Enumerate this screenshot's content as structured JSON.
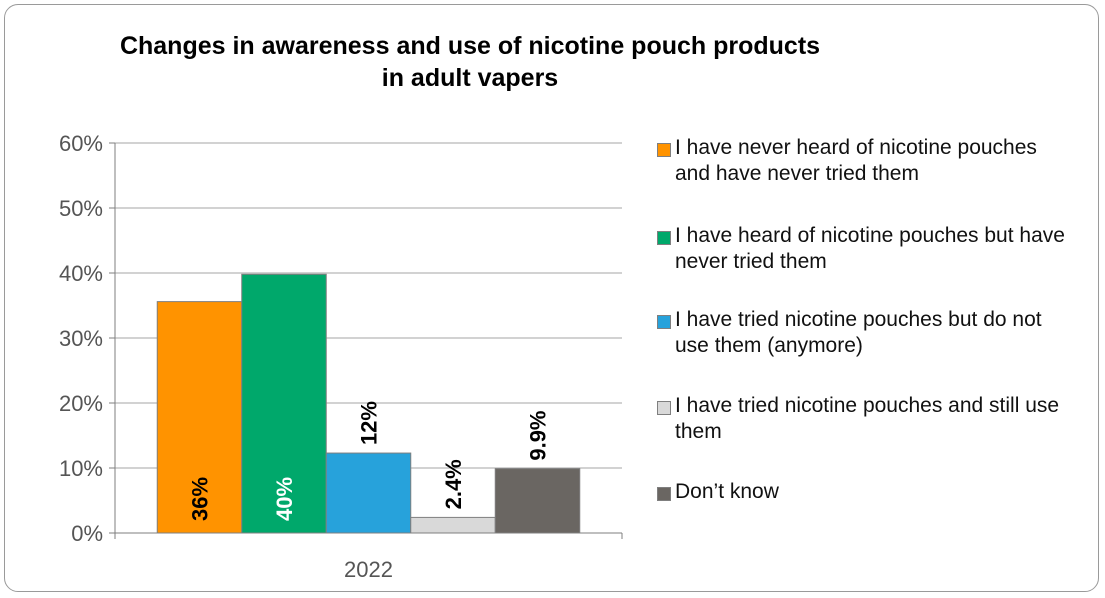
{
  "chart_data": {
    "type": "bar",
    "title": "Changes in awareness and use of nicotine pouch products in adult vapers",
    "title_lines": [
      "Changes in awareness and use of nicotine pouch products",
      "in adult vapers"
    ],
    "categories": [
      "2022"
    ],
    "yticks": [
      "0%",
      "10%",
      "20%",
      "30%",
      "40%",
      "50%",
      "60%"
    ],
    "ylim": [
      0,
      60
    ],
    "grid": true,
    "legend_position": "right",
    "series": [
      {
        "name": "I have never heard of nicotine pouches and have never tried them",
        "values": [
          35.6
        ],
        "label": "36%",
        "color": "#FF9300",
        "label_color": "#000000"
      },
      {
        "name": "I have heard of nicotine pouches but have never tried them",
        "values": [
          39.8
        ],
        "label": "40%",
        "color": "#00A86B",
        "label_color": "#FFFFFF"
      },
      {
        "name": "I have tried nicotine pouches but do not use them (anymore)",
        "values": [
          12.3
        ],
        "label": "12%",
        "color": "#27A2DB",
        "label_color": "#000000"
      },
      {
        "name": "I have tried nicotine pouches and still use them",
        "values": [
          2.4
        ],
        "label": "2.4%",
        "color": "#D9D9D9",
        "label_color": "#000000"
      },
      {
        "name": "Don’t know",
        "values": [
          9.9
        ],
        "label": "9.9%",
        "color": "#6A6662",
        "label_color": "#000000"
      }
    ]
  }
}
